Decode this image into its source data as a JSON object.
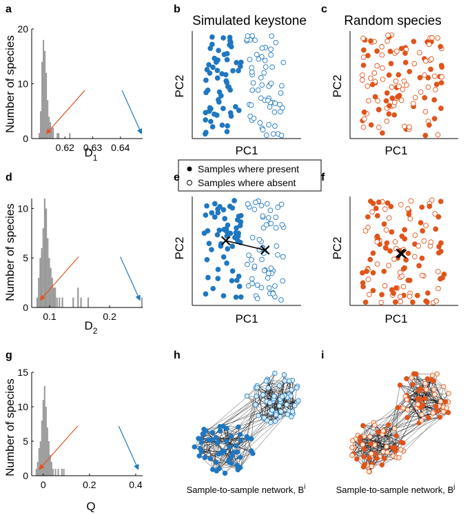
{
  "colors": {
    "blue": "#1f77c0",
    "orange": "#e0541b",
    "gray": "#999999",
    "lightblue": "#d6ecf7",
    "cream": "#fbe9d8"
  },
  "column_titles": {
    "keystone": "Simulated keystone",
    "random": "Random species"
  },
  "legend": {
    "present": "Samples where present",
    "absent": "Samples where absent"
  },
  "chart_data": [
    {
      "id": "a",
      "panel_label": "a",
      "type": "bar",
      "ylabel": "Number of species",
      "xlabel": "D",
      "xlabel_sub": "1",
      "xlim": [
        0.608,
        0.648
      ],
      "ylim": [
        0,
        20
      ],
      "xticks": [
        0.62,
        0.63,
        0.64
      ],
      "xtick_labels": [
        "0.62",
        "0.63",
        "0.64"
      ],
      "yticks": [
        0,
        10,
        20
      ],
      "ytick_labels": [
        "0",
        "10",
        "20"
      ],
      "bin_width": 0.0005,
      "bins": [
        [
          0.6105,
          1
        ],
        [
          0.611,
          5
        ],
        [
          0.6115,
          14
        ],
        [
          0.612,
          18
        ],
        [
          0.6125,
          16
        ],
        [
          0.613,
          12
        ],
        [
          0.6135,
          7
        ],
        [
          0.614,
          4
        ],
        [
          0.6145,
          3
        ],
        [
          0.615,
          2
        ],
        [
          0.6155,
          2
        ],
        [
          0.617,
          1
        ],
        [
          0.6175,
          1
        ],
        [
          0.6215,
          1
        ]
      ],
      "arrows": [
        {
          "color": "orange",
          "target_x": 0.6135,
          "target_y": 1
        },
        {
          "color": "blue",
          "target_x": 0.6475,
          "target_y": 1
        }
      ]
    },
    {
      "id": "d",
      "panel_label": "d",
      "type": "bar",
      "ylabel": "Number of species",
      "xlabel": "D",
      "xlabel_sub": "2",
      "xlim": [
        0.07,
        0.255
      ],
      "ylim": [
        0,
        11
      ],
      "xticks": [
        0.1,
        0.2
      ],
      "xtick_labels": [
        "0.1",
        "0.2"
      ],
      "yticks": [
        0,
        5,
        10
      ],
      "ytick_labels": [
        "0",
        "5",
        "10"
      ],
      "bin_width": 0.0025,
      "bins": [
        [
          0.078,
          1
        ],
        [
          0.0805,
          3
        ],
        [
          0.083,
          5
        ],
        [
          0.0855,
          6
        ],
        [
          0.088,
          8
        ],
        [
          0.0905,
          11
        ],
        [
          0.093,
          10
        ],
        [
          0.0955,
          7
        ],
        [
          0.098,
          5
        ],
        [
          0.1005,
          4
        ],
        [
          0.103,
          3
        ],
        [
          0.1055,
          2
        ],
        [
          0.108,
          2
        ],
        [
          0.111,
          1
        ],
        [
          0.115,
          1
        ],
        [
          0.12,
          1
        ],
        [
          0.138,
          1
        ],
        [
          0.146,
          2
        ],
        [
          0.151,
          1
        ],
        [
          0.163,
          1
        ],
        [
          0.2525,
          1
        ]
      ],
      "arrows": [
        {
          "color": "orange",
          "target_x": 0.085,
          "target_y": 0.8
        },
        {
          "color": "blue",
          "target_x": 0.25,
          "target_y": 0.8
        }
      ]
    },
    {
      "id": "g",
      "panel_label": "g",
      "type": "bar",
      "ylabel": "Number of species",
      "xlabel": "Q",
      "xlabel_sub": "",
      "xlim": [
        -0.05,
        0.43
      ],
      "ylim": [
        0,
        15
      ],
      "xticks": [
        0,
        0.2,
        0.4
      ],
      "xtick_labels": [
        "0",
        "0.2",
        "0.4"
      ],
      "yticks": [
        0,
        5,
        10,
        15
      ],
      "ytick_labels": [
        "0",
        "5",
        "10",
        "15"
      ],
      "bin_width": 0.006,
      "bins": [
        [
          -0.033,
          1
        ],
        [
          -0.027,
          2
        ],
        [
          -0.021,
          4
        ],
        [
          -0.015,
          5
        ],
        [
          -0.009,
          8
        ],
        [
          -0.003,
          11
        ],
        [
          0.003,
          13
        ],
        [
          0.009,
          10
        ],
        [
          0.015,
          7
        ],
        [
          0.021,
          5
        ],
        [
          0.027,
          3
        ],
        [
          0.033,
          2
        ],
        [
          0.039,
          1
        ],
        [
          0.05,
          1
        ],
        [
          0.062,
          1
        ],
        [
          0.078,
          1
        ],
        [
          0.086,
          1
        ]
      ],
      "arrows": [
        {
          "color": "orange",
          "target_x": -0.015,
          "target_y": 1
        },
        {
          "color": "blue",
          "target_x": 0.41,
          "target_y": 1
        }
      ]
    },
    {
      "id": "b",
      "panel_label": "b",
      "type": "scatter",
      "xlabel": "PC1",
      "ylabel": "PC2",
      "color": "blue",
      "coloring": "split",
      "seed": 11,
      "centroids": false
    },
    {
      "id": "c",
      "panel_label": "c",
      "type": "scatter",
      "xlabel": "PC1",
      "ylabel": "PC2",
      "color": "orange",
      "coloring": "random",
      "seed": 23,
      "centroids": false
    },
    {
      "id": "e",
      "panel_label": "e",
      "type": "scatter",
      "xlabel": "PC1",
      "ylabel": "PC2",
      "color": "blue",
      "coloring": "split",
      "seed": 37,
      "centroids": true,
      "centroid_connect": true
    },
    {
      "id": "f",
      "panel_label": "f",
      "type": "scatter",
      "xlabel": "PC1",
      "ylabel": "PC2",
      "color": "orange",
      "coloring": "random",
      "seed": 51,
      "centroids": true,
      "centroid_connect": false
    },
    {
      "id": "h",
      "panel_label": "h",
      "type": "network",
      "caption": "Sample-to-sample network, B",
      "caption_sup": "i",
      "color": "blue",
      "clusterA_fill": "blue",
      "clusterB_fill": "lightblue",
      "seed": 67
    },
    {
      "id": "i",
      "panel_label": "i",
      "type": "network",
      "caption": "Sample-to-sample network, B",
      "caption_sup": "j",
      "color": "orange",
      "clusterA_fill": "mixed",
      "clusterB_fill": "mixed",
      "seed": 79
    }
  ]
}
